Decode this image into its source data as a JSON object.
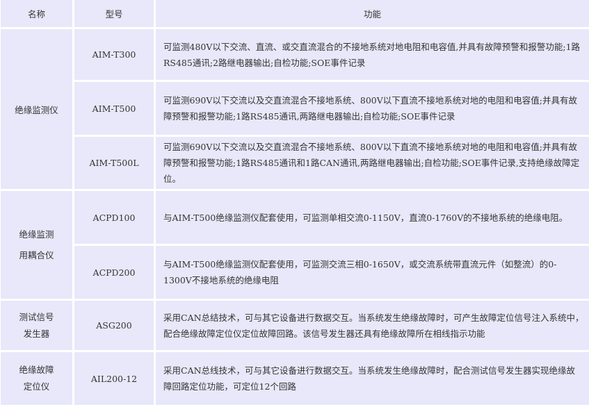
{
  "header": {
    "name": "名称",
    "model": "型号",
    "function": "功能"
  },
  "groups": [
    {
      "name": "绝缘监测仪",
      "rows": [
        {
          "model": "AIM-T300",
          "function": "可监测480V以下交流、直流、或交直流混合的不接地系统对地电阻和电容值,并具有故障预警和报警功能;1路RS485通讯;2路继电器输出;自检功能;SOE事件记录"
        },
        {
          "model": "AIM-T500",
          "function": "可监测690V以下交流以及交直流混合不接地系统、800V以下直流不接地系统对地的电阻和电容值;并具有故障预警和报警功能;1路RS485通讯,两路继电器输出;自检功能;SOE事件记录"
        },
        {
          "model": "AIM-T500L",
          "function": "可监测690V以下交流以及交直流混合不接地系统、800V以下直流不接地系统对地的电阻和电容值;并具有故障预警和报警功能;1路RS485通讯和1路CAN通讯,两路继电器输出;自检功能;SOE事件记录,支持绝缘故障定位。"
        }
      ]
    },
    {
      "name": "绝缘监测用耦合仪",
      "rows": [
        {
          "model": "ACPD100",
          "function": "与AIM-T500绝缘监测仪配套使用，可监测单相交流0-1150V，直流0-1760V的不接地系统的绝缘电阻。"
        },
        {
          "model": "ACPD200",
          "function": "与AIM-T500绝缘监测仪配套使用，可监测交流三相0-1650V，或交流系统带直流元件（如整流）的0-1300V不接地系统的绝缘电阻"
        }
      ]
    },
    {
      "name": "测试信号发生器",
      "rows": [
        {
          "model": "ASG200",
          "function": "采用CAN总结技术，可与其它设备进行数据交互。当系统发生绝缘故障时，可产生故障定位信号注入系统中，配合绝缘故障定位仪定位故障回路。该信号发生器还具有绝缘故障所在相线指示功能"
        }
      ]
    },
    {
      "name": "绝缘故障定位仪",
      "rows": [
        {
          "model": "AIL200-12",
          "function": "采用CAN总线技术，可与其它设备进行数据交互。当系统发生绝缘故障时，配合测试信号发生器实现绝缘故障回路定位功能，可定位12个回路"
        }
      ]
    }
  ]
}
